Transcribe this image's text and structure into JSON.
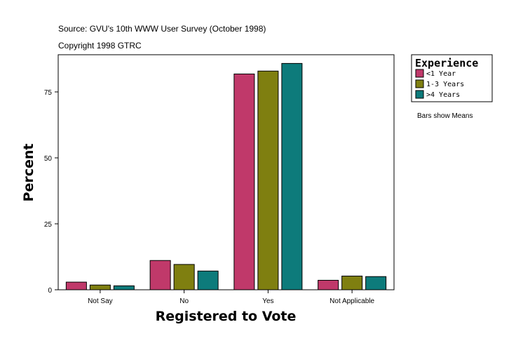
{
  "header": {
    "source": "Source: GVU's 10th WWW User Survey (October 1998)",
    "copyright": "Copyright 1998 GTRC"
  },
  "note": "Bars show Means",
  "chart_data": {
    "type": "bar",
    "title": "",
    "xlabel": "Registered to Vote",
    "ylabel": "Percent",
    "categories": [
      "Not Say",
      "No",
      "Yes",
      "Not Applicable"
    ],
    "yticks": [
      0,
      25,
      50,
      75
    ],
    "ylim": [
      0,
      89
    ],
    "grid": false,
    "legend": {
      "title": "Experience",
      "placement": "right"
    },
    "series": [
      {
        "name": "<1 Year",
        "color": "#c0396a",
        "values": [
          2.9,
          11.1,
          81.8,
          3.6
        ]
      },
      {
        "name": "1-3 Years",
        "color": "#7f7f10",
        "values": [
          1.8,
          9.6,
          82.9,
          5.2
        ]
      },
      {
        "name": ">4 Years",
        "color": "#0d7b7b",
        "values": [
          1.5,
          7.1,
          85.8,
          5.0
        ]
      }
    ]
  }
}
